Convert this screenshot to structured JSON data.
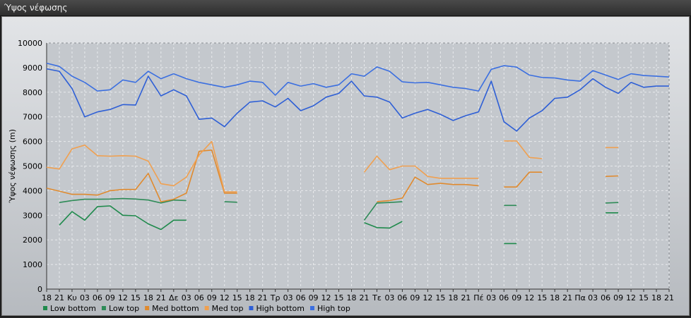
{
  "window": {
    "title": "Ύψος νέφωσης"
  },
  "chart_data": {
    "type": "line",
    "ylabel": "Ύψος νέφωσης (m)",
    "ylim": [
      0,
      10000
    ],
    "yticks": [
      0,
      1000,
      2000,
      3000,
      4000,
      5000,
      6000,
      7000,
      8000,
      9000,
      10000
    ],
    "grid": true,
    "legend_position": "bottom-left",
    "x_tick_labels": [
      "18",
      "21",
      "Κυ",
      "03",
      "06",
      "09",
      "12",
      "15",
      "18",
      "21",
      "Δε",
      "03",
      "06",
      "09",
      "12",
      "15",
      "18",
      "21",
      "Τρ",
      "03",
      "06",
      "09",
      "12",
      "15",
      "18",
      "21",
      "Τε",
      "03",
      "06",
      "09",
      "12",
      "15",
      "18",
      "21",
      "Πέ",
      "03",
      "06",
      "09",
      "12",
      "15",
      "18",
      "21",
      "Πα",
      "03",
      "06",
      "09",
      "12",
      "15",
      "18",
      "21"
    ],
    "series": [
      {
        "name": "Low bottom",
        "color": "#1f8a4c",
        "values": [
          null,
          2600,
          3150,
          2800,
          3350,
          3380,
          3000,
          2980,
          2650,
          2420,
          2800,
          2800,
          null,
          null,
          null,
          null,
          null,
          null,
          null,
          null,
          null,
          null,
          null,
          null,
          null,
          2700,
          2500,
          2480,
          2750,
          null,
          null,
          null,
          null,
          null,
          null,
          null,
          1850,
          1850,
          null,
          null,
          null,
          null,
          null,
          null,
          3100,
          3100,
          null,
          null,
          null,
          null
        ]
      },
      {
        "name": "Low top",
        "color": "#2e8b57",
        "values": [
          null,
          3520,
          3600,
          3650,
          3650,
          3660,
          3680,
          3660,
          3620,
          3500,
          3620,
          3600,
          null,
          null,
          3550,
          3530,
          null,
          null,
          null,
          null,
          null,
          null,
          null,
          null,
          null,
          2800,
          3500,
          3520,
          3550,
          null,
          null,
          null,
          null,
          null,
          null,
          null,
          3400,
          3400,
          null,
          null,
          null,
          null,
          null,
          null,
          3500,
          3520,
          null,
          null,
          null,
          null
        ]
      },
      {
        "name": "Med bottom",
        "color": "#e08a2e",
        "values": [
          4100,
          3980,
          3850,
          3850,
          3820,
          4000,
          4050,
          4050,
          4700,
          3550,
          3650,
          3900,
          5600,
          5650,
          3900,
          3900,
          null,
          null,
          null,
          null,
          null,
          null,
          null,
          null,
          null,
          null,
          3550,
          3600,
          3700,
          4550,
          4250,
          4300,
          4250,
          4250,
          4200,
          null,
          4150,
          4150,
          4750,
          4750,
          null,
          null,
          null,
          null,
          4580,
          4600,
          null,
          null,
          null,
          null
        ]
      },
      {
        "name": "Med top",
        "color": "#f0a050",
        "values": [
          4950,
          4880,
          5700,
          5850,
          5420,
          5400,
          5420,
          5400,
          5200,
          4280,
          4200,
          4550,
          5450,
          6000,
          3950,
          3950,
          null,
          null,
          null,
          null,
          null,
          null,
          null,
          null,
          null,
          4750,
          5400,
          4850,
          5000,
          5000,
          4580,
          4500,
          4500,
          4500,
          4500,
          null,
          6020,
          6020,
          5350,
          5300,
          null,
          null,
          null,
          null,
          5750,
          5750,
          null,
          null,
          null,
          null
        ]
      },
      {
        "name": "High bottom",
        "color": "#2e5fd6",
        "values": [
          8950,
          8850,
          8150,
          7000,
          7200,
          7300,
          7500,
          7480,
          8650,
          7850,
          8100,
          7850,
          6900,
          6950,
          6600,
          7150,
          7600,
          7650,
          7400,
          7750,
          7250,
          7450,
          7800,
          7950,
          8450,
          7850,
          7800,
          7600,
          6950,
          7150,
          7300,
          7100,
          6850,
          7050,
          7200,
          8450,
          6800,
          6420,
          6950,
          7250,
          7750,
          7800,
          8100,
          8550,
          8200,
          7950,
          8400,
          8200,
          8250,
          8250
        ]
      },
      {
        "name": "High top",
        "color": "#3b6fe0",
        "values": [
          9180,
          9050,
          8650,
          8400,
          8050,
          8100,
          8500,
          8400,
          8850,
          8550,
          8750,
          8550,
          8400,
          8300,
          8200,
          8300,
          8450,
          8400,
          7880,
          8400,
          8250,
          8350,
          8200,
          8300,
          8750,
          8650,
          9030,
          8850,
          8420,
          8380,
          8400,
          8300,
          8200,
          8150,
          8050,
          8930,
          9080,
          9020,
          8700,
          8600,
          8580,
          8500,
          8450,
          8880,
          8700,
          8520,
          8750,
          8680,
          8650,
          8620
        ]
      }
    ]
  }
}
